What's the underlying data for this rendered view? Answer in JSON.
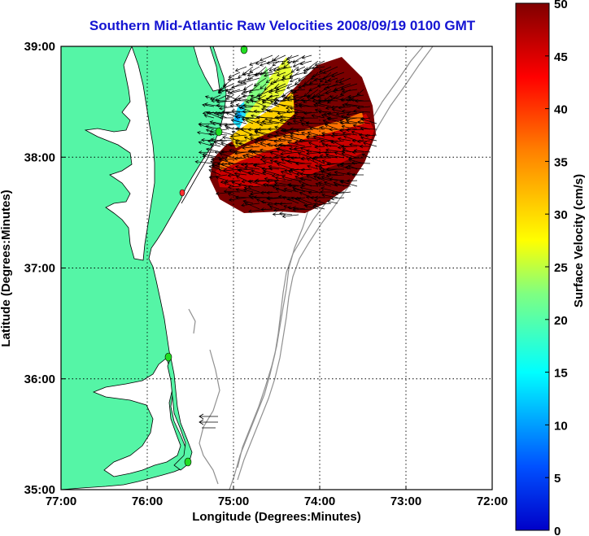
{
  "title": "Southern Mid-Atlantic Raw Velocities 2008/09/19 0100 GMT",
  "x_axis": {
    "label": "Longitude (Degrees:Minutes)",
    "ticks": [
      "77:00",
      "76:00",
      "75:00",
      "74:00",
      "73:00",
      "72:00"
    ],
    "range": [
      -77,
      -72
    ]
  },
  "y_axis": {
    "label": "Latitude (Degrees:Minutes)",
    "ticks": [
      "39:00",
      "38:00",
      "37:00",
      "36:00",
      "35:00"
    ],
    "range": [
      35,
      39
    ]
  },
  "colorbar": {
    "label": "Surface Velocity (cm/s)",
    "ticks": [
      "50",
      "45",
      "40",
      "35",
      "30",
      "25",
      "20",
      "15",
      "10",
      "5",
      "0"
    ],
    "range": [
      0,
      50
    ]
  },
  "colors": {
    "land": "#55f5a6",
    "title": "#1414d2",
    "station": "#22dd22",
    "bathymetry": "#909090"
  },
  "grid": true
}
